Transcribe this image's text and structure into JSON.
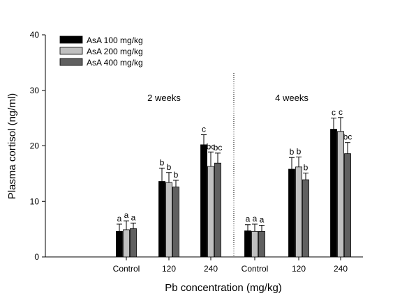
{
  "chart_data": {
    "type": "bar",
    "ylabel": "Plasma cortisol (ng/ml)",
    "xlabel": "Pb concentration (mg/kg)",
    "ylim": [
      0,
      40
    ],
    "yticks": [
      0,
      10,
      20,
      30,
      40
    ],
    "categories": [
      "Control",
      "120",
      "240",
      "Control",
      "120",
      "240"
    ],
    "panels": [
      {
        "label": "2 weeks",
        "category_range": [
          0,
          2
        ]
      },
      {
        "label": "4 weeks",
        "category_range": [
          3,
          5
        ]
      }
    ],
    "legend_position": "top-left",
    "series": [
      {
        "name": "AsA 100 mg/kg",
        "color": "#000000",
        "values": [
          4.6,
          13.6,
          20.2,
          4.7,
          15.8,
          23.0
        ],
        "errors": [
          1.3,
          2.4,
          1.8,
          1.1,
          2.1,
          2.0
        ],
        "letters": [
          "a",
          "b",
          "c",
          "a",
          "b",
          "c"
        ]
      },
      {
        "name": "AsA 200 mg/kg",
        "color": "#c0c0c0",
        "values": [
          4.9,
          13.4,
          16.3,
          4.6,
          16.2,
          22.6
        ],
        "errors": [
          1.6,
          1.8,
          2.6,
          1.3,
          1.8,
          2.5
        ],
        "letters": [
          "a",
          "b",
          "bc",
          "a",
          "b",
          "c"
        ]
      },
      {
        "name": "AsA 400 mg/kg",
        "color": "#606060",
        "values": [
          5.1,
          12.6,
          16.9,
          4.6,
          13.9,
          18.6
        ],
        "errors": [
          1.0,
          1.2,
          1.8,
          1.1,
          1.2,
          2.0
        ],
        "letters": [
          "a",
          "b",
          "bc",
          "a",
          "b",
          "bc"
        ]
      }
    ]
  }
}
